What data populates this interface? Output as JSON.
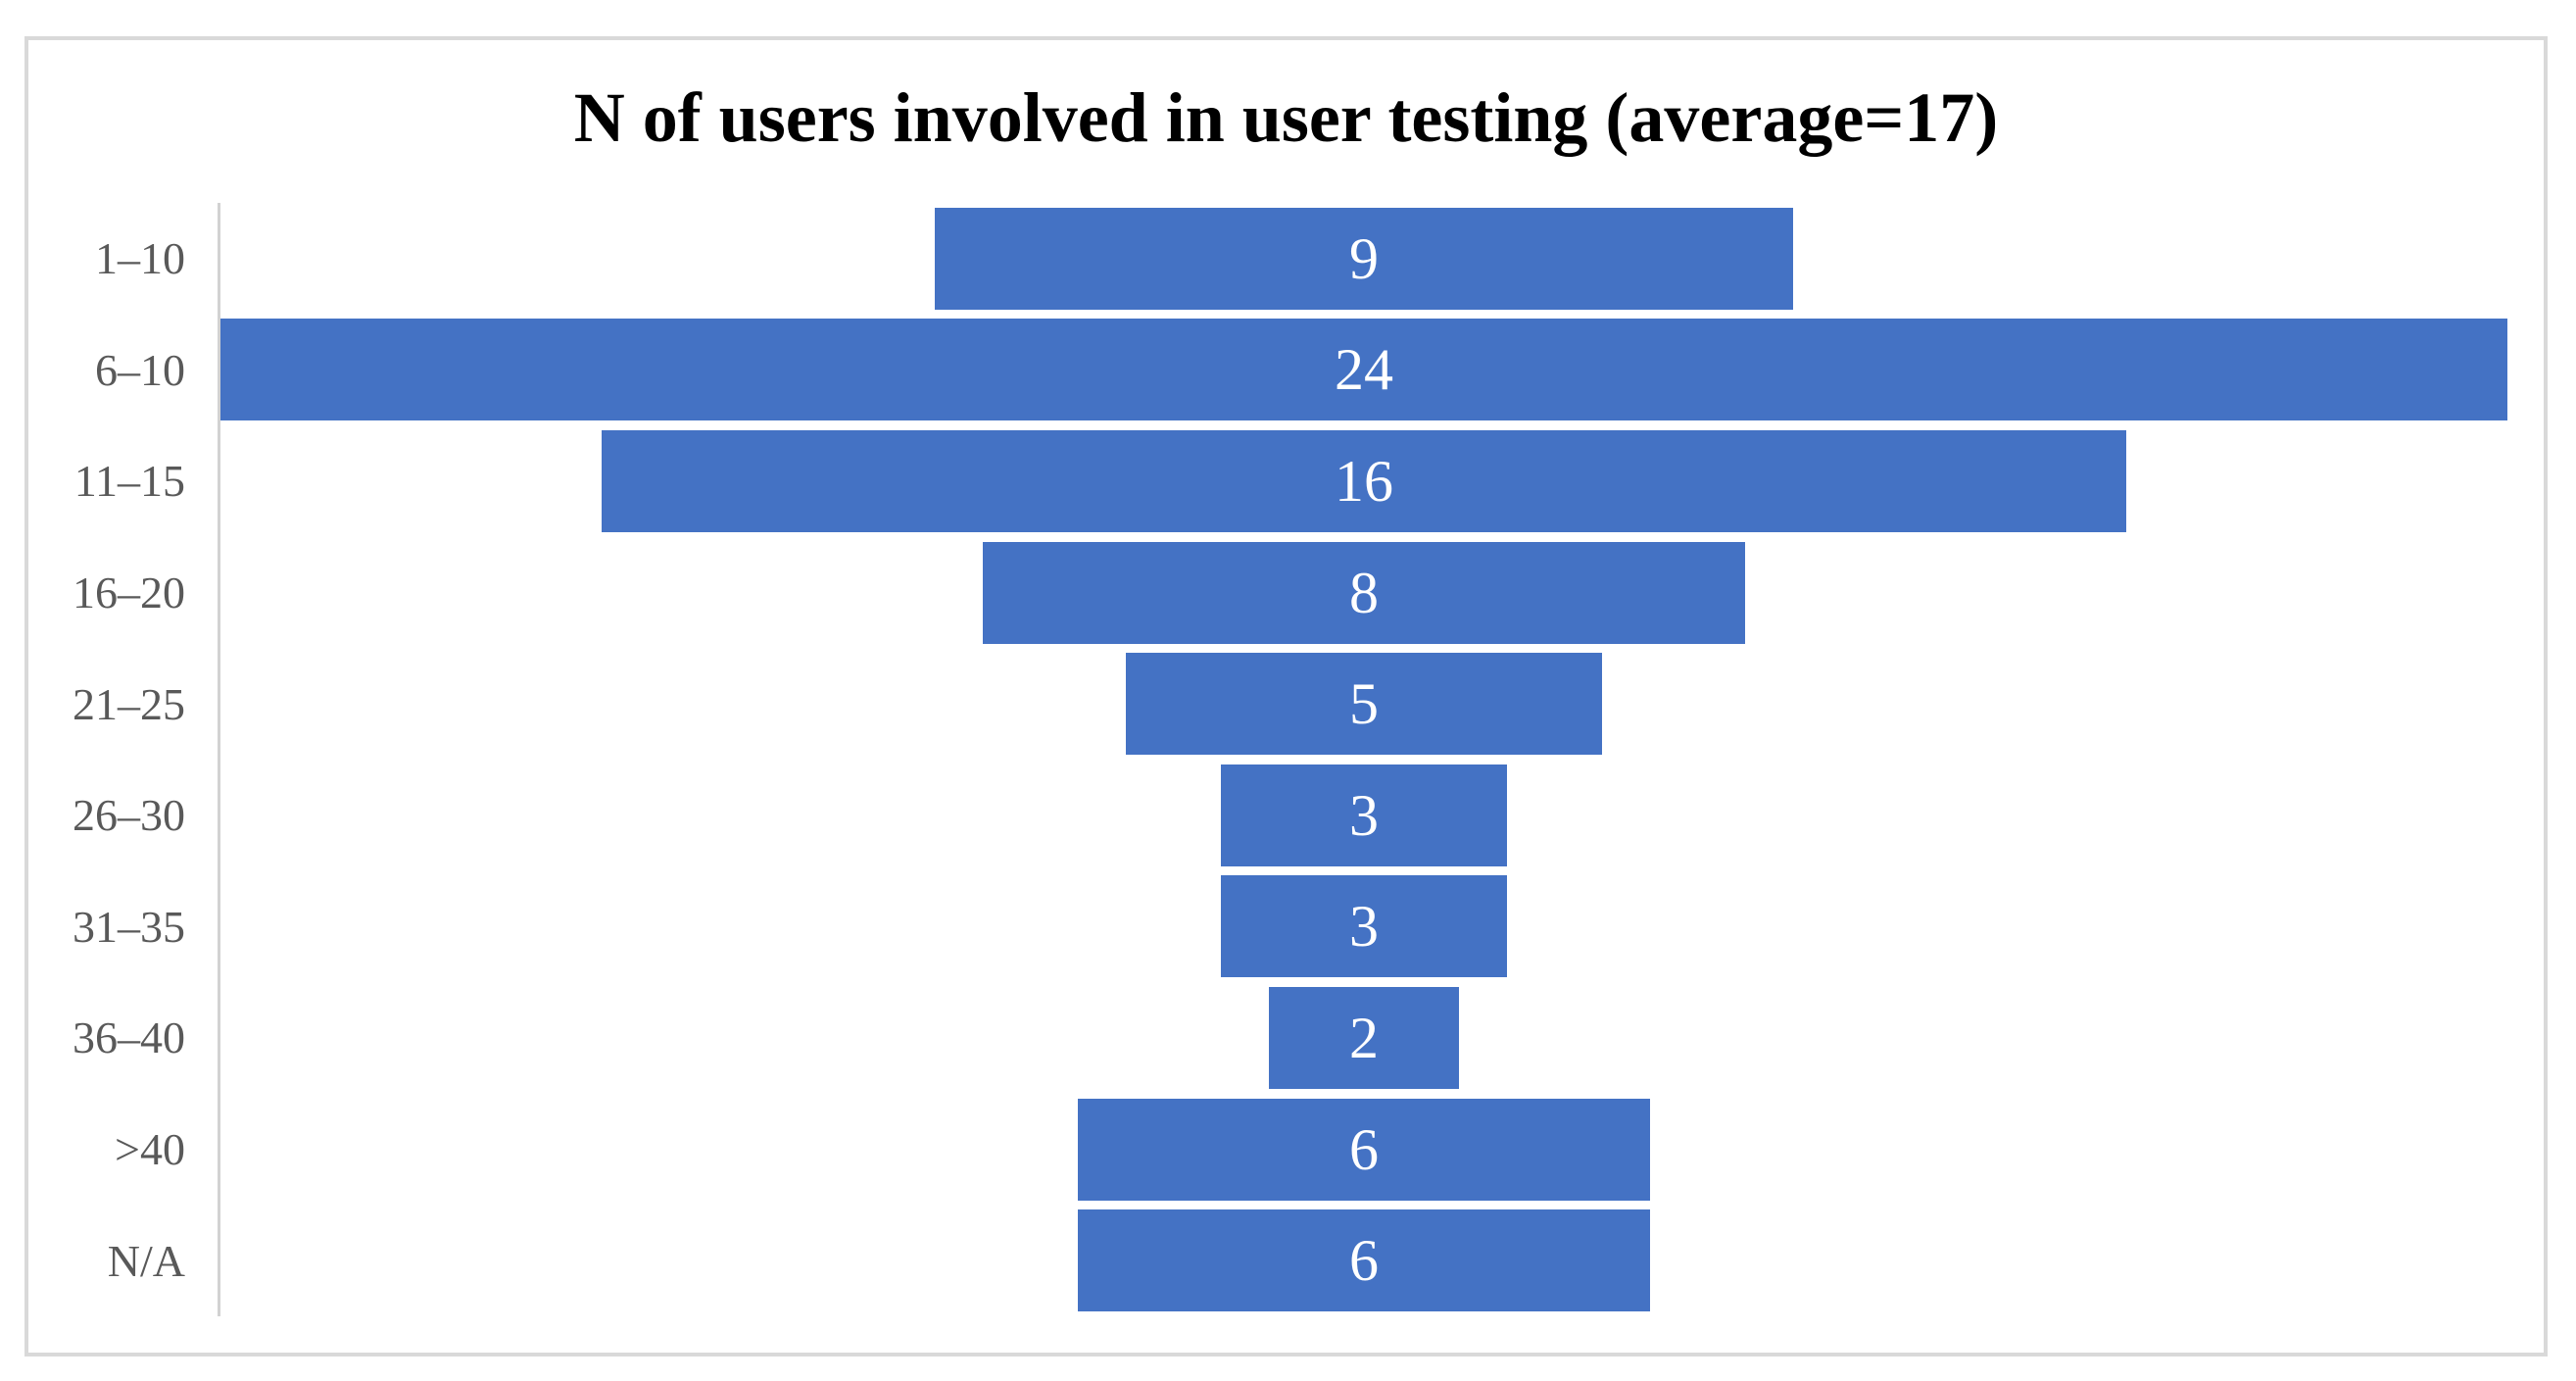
{
  "page": {
    "background": "#ffffff"
  },
  "frame": {
    "border_color": "#d9d9d9",
    "axis_line_color": "#d2d2d2"
  },
  "chart_data": {
    "type": "bar",
    "subtype": "centered-funnel",
    "orientation": "horizontal",
    "title": "N of users involved in user testing (average=17)",
    "categories": [
      "1–10",
      "6–10",
      "11–15",
      "16–20",
      "21–25",
      "26–30",
      "31–35",
      "36–40",
      ">40",
      "N/A"
    ],
    "series": [
      {
        "name": "N of users",
        "values": [
          9,
          24,
          16,
          8,
          5,
          3,
          3,
          2,
          6,
          6
        ]
      }
    ],
    "value_axis_max": 24,
    "data_labels": "inside-center",
    "bar_color": "#4472c4",
    "value_label_color": "#ffffff",
    "category_label_color": "#595959",
    "grid": false,
    "legend_position": "none"
  }
}
